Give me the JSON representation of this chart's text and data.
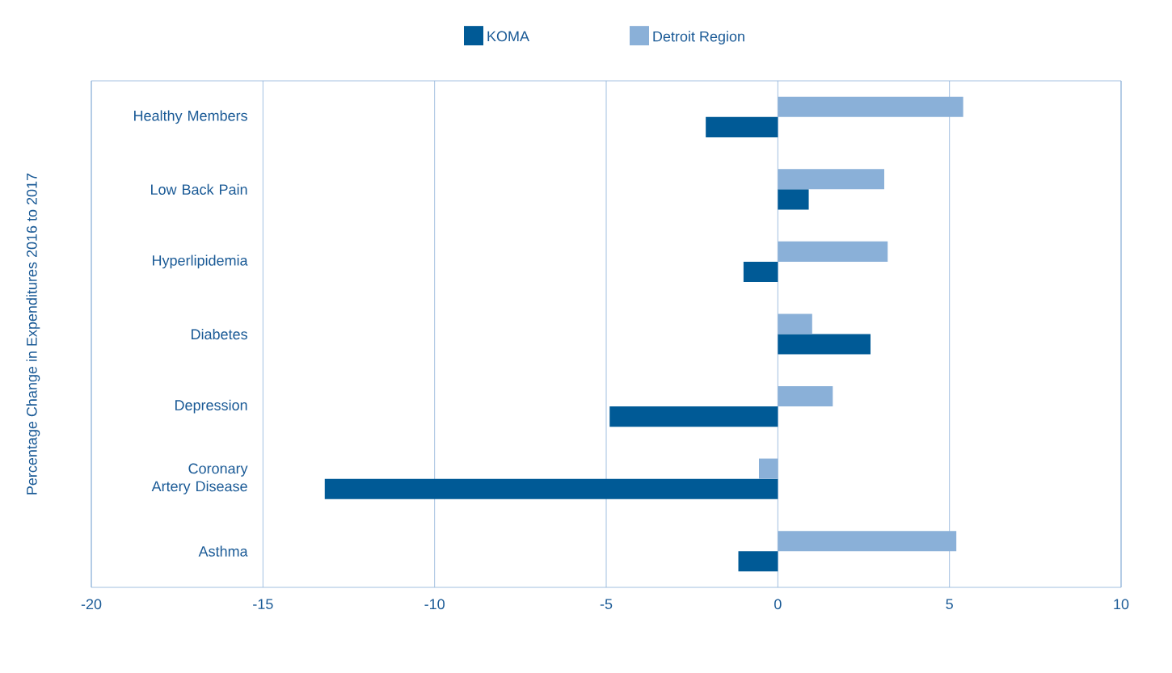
{
  "chart_data": {
    "type": "bar",
    "orientation": "horizontal",
    "categories": [
      "Healthy Members",
      "Low Back Pain",
      "Hyperlipidemia",
      "Diabetes",
      "Depression",
      "Coronary Artery Disease",
      "Asthma"
    ],
    "series": [
      {
        "name": "KOMA",
        "color": "#005a96",
        "values": [
          -2.1,
          0.9,
          -1.0,
          2.7,
          -4.9,
          -13.2,
          -1.15
        ]
      },
      {
        "name": "Detroit Region",
        "color": "#8ab0d8",
        "values": [
          5.4,
          3.1,
          3.2,
          1.0,
          1.6,
          -0.55,
          5.2
        ]
      }
    ],
    "xlim": [
      -20,
      10
    ],
    "xticks": [
      -20,
      -15,
      -10,
      -5,
      0,
      5,
      10
    ],
    "ylabel": "Percentage Change in Expenditures 2016 to 2017",
    "grid": "x",
    "legend": "top"
  }
}
